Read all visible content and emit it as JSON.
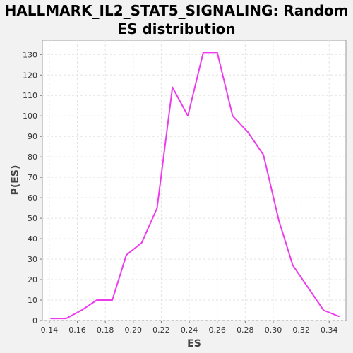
{
  "chart_data": {
    "type": "line",
    "title_lines": [
      "HALLMARK_IL2_STAT5_SIGNALING: Random",
      "ES distribution"
    ],
    "xlabel": "ES",
    "ylabel": "P(ES)",
    "xlim": [
      0.135,
      0.352
    ],
    "ylim": [
      0,
      137
    ],
    "x_ticks": [
      0.14,
      0.16,
      0.18,
      0.2,
      0.22,
      0.24,
      0.26,
      0.28,
      0.3,
      0.32,
      0.34
    ],
    "x_tick_labels": [
      "0.14",
      "0.16",
      "0.18",
      "0.20",
      "0.22",
      "0.24",
      "0.26",
      "0.28",
      "0.30",
      "0.32",
      "0.34"
    ],
    "y_ticks": [
      0,
      10,
      20,
      30,
      40,
      50,
      60,
      70,
      80,
      90,
      100,
      110,
      120,
      130
    ],
    "y_tick_labels": [
      "0",
      "10",
      "20",
      "30",
      "40",
      "50",
      "60",
      "70",
      "80",
      "90",
      "100",
      "110",
      "120",
      "130"
    ],
    "grid": true,
    "series": [
      {
        "color": "#ee3bee",
        "x": [
          0.141,
          0.152,
          0.163,
          0.174,
          0.185,
          0.195,
          0.206,
          0.217,
          0.228,
          0.239,
          0.25,
          0.26,
          0.271,
          0.282,
          0.293,
          0.304,
          0.314,
          0.325,
          0.336,
          0.347
        ],
        "y": [
          1,
          1,
          5,
          10,
          10,
          32,
          38,
          55,
          114,
          100,
          131,
          131,
          100,
          92,
          81,
          49,
          27,
          16,
          5,
          2
        ]
      }
    ]
  }
}
